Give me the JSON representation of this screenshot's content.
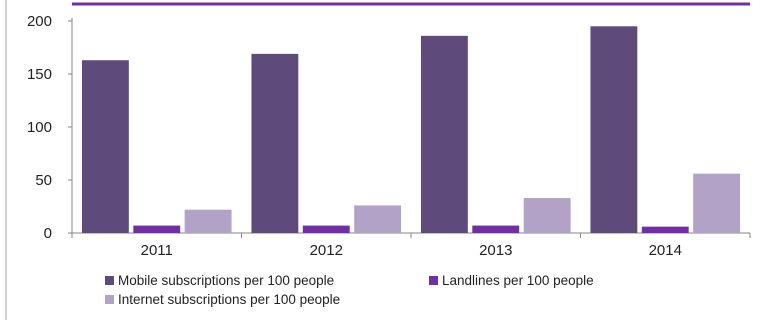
{
  "chart_data": {
    "type": "bar",
    "categories": [
      "2011",
      "2012",
      "2013",
      "2014"
    ],
    "series": [
      {
        "name": "Mobile subscriptions per 100 people",
        "values": [
          163,
          169,
          186,
          195
        ],
        "color": "#5f4a7c"
      },
      {
        "name": "Landlines per 100 people",
        "values": [
          7,
          7,
          7,
          6
        ],
        "color": "#7030a0"
      },
      {
        "name": "Internet subscriptions per 100 people",
        "values": [
          22,
          26,
          33,
          56
        ],
        "color": "#b3a2c7"
      }
    ],
    "title": "",
    "xlabel": "",
    "ylabel": "",
    "ylim": [
      0,
      200
    ],
    "yticks": [
      0,
      50,
      100,
      150,
      200
    ],
    "grid": false,
    "legend_position": "bottom",
    "accent_line_color": "#7030a0"
  }
}
